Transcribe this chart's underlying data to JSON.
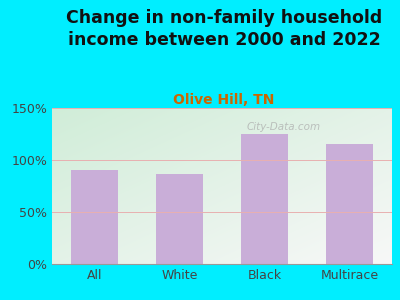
{
  "title": "Change in non-family household\nincome between 2000 and 2022",
  "subtitle": "Olive Hill, TN",
  "categories": [
    "All",
    "White",
    "Black",
    "Multirace"
  ],
  "values": [
    90,
    87,
    125,
    115
  ],
  "bar_color": "#c9aed8",
  "title_fontsize": 12.5,
  "subtitle_fontsize": 10,
  "subtitle_color": "#cc6600",
  "title_color": "#111111",
  "ylim": [
    0,
    150
  ],
  "yticks": [
    0,
    50,
    100,
    150
  ],
  "ytick_labels": [
    "0%",
    "50%",
    "100%",
    "150%"
  ],
  "background_outer": "#00eeff",
  "bg_top_left": "#d0edd8",
  "bg_bottom_right": "#f8f8f8",
  "watermark": "City-Data.com",
  "grid_color": "#e8b0b0",
  "bar_width": 0.55
}
